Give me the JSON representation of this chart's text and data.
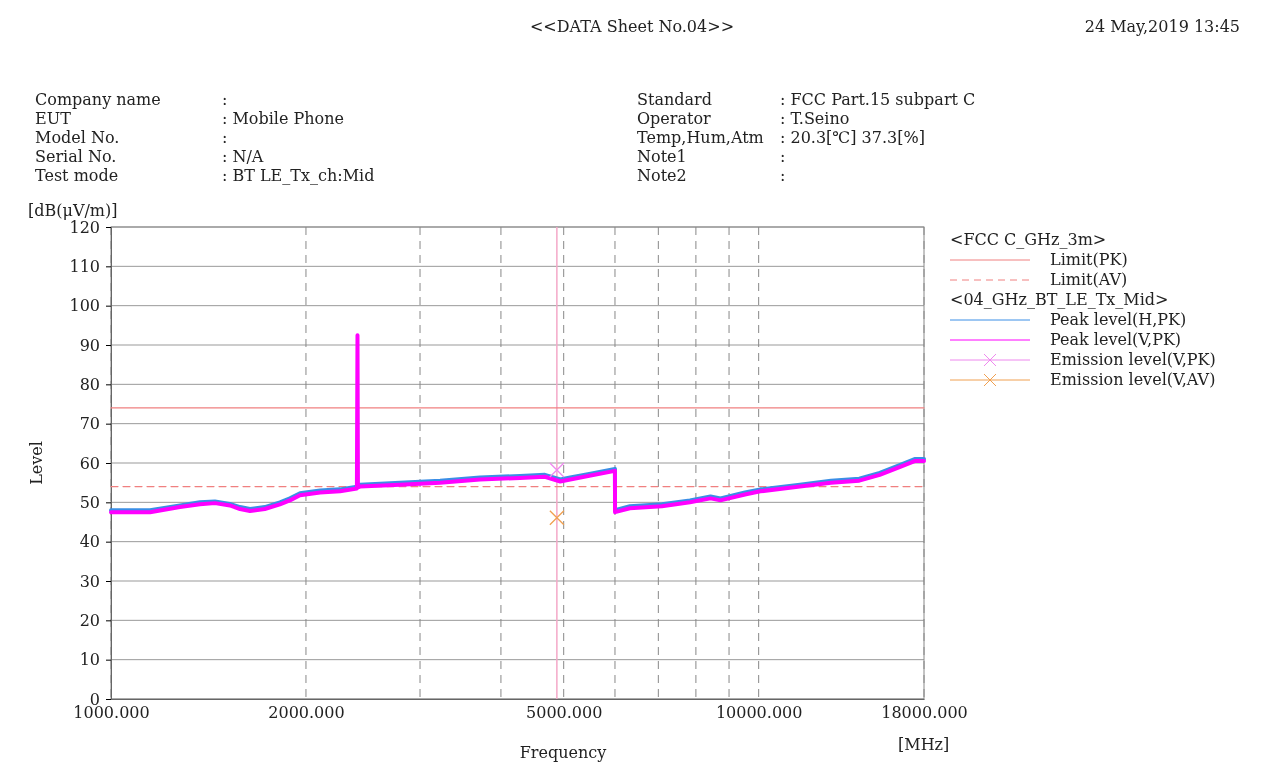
{
  "chart_data": {
    "type": "line",
    "title": "<<DATA Sheet No.04>>",
    "xlabel": "Frequency",
    "ylabel": "Level",
    "legend_title": "<FCC C_GHz_3m>",
    "log": "x",
    "grid": true,
    "legend": "right",
    "xlim": [
      1000,
      18000
    ],
    "ylim": [
      0,
      120
    ],
    "xticks": [
      {
        "value": 1000,
        "label": "1000.000"
      },
      {
        "value": 2000,
        "label": "2000.000"
      },
      {
        "value": 3000,
        "label": null
      },
      {
        "value": 4000,
        "label": null
      },
      {
        "value": 5000,
        "label": "5000.000"
      },
      {
        "value": 6000,
        "label": null
      },
      {
        "value": 7000,
        "label": null
      },
      {
        "value": 8000,
        "label": null
      },
      {
        "value": 9000,
        "label": null
      },
      {
        "value": 10000,
        "label": "10000.000"
      },
      {
        "value": 18000,
        "label": "18000.000"
      }
    ],
    "yticks": [
      0,
      10,
      20,
      30,
      40,
      50,
      60,
      70,
      80,
      90,
      100,
      110,
      120
    ],
    "ref_lines": [
      {
        "axis": "x",
        "value": 4880,
        "color": "#f4a8c8"
      }
    ],
    "annotations": [
      "24 May,2019 13:45",
      "Company name",
      ":",
      "EUT",
      ": Mobile Phone",
      "Model No.",
      ":",
      "Serial No.",
      ": N/A",
      "Test mode",
      ": BT LE_Tx_ch:Mid",
      "Standard",
      ": FCC Part.15 subpart C",
      "Operator",
      ": T.Seino",
      "Temp,Hum,Atm",
      ": 20.3[℃] 37.3[%]",
      "Note1",
      ":",
      "Note2",
      ":",
      "[dB(μV/m)]",
      "[MHz]",
      "<04_GHz_BT_LE_Tx_Mid>"
    ],
    "series": [
      {
        "name": "Limit(PK)",
        "color": "#f08080",
        "line_style": "solid",
        "x": [
          1000,
          18000
        ],
        "values": [
          74,
          74
        ]
      },
      {
        "name": "Limit(AV)",
        "color": "#f08080",
        "line_style": "dashed",
        "x": [
          1000,
          18000
        ],
        "values": [
          54,
          54
        ]
      },
      {
        "name": "Peak level(H,PK)",
        "color": "#3a8ee6",
        "line_style": "solid",
        "x": [
          1000,
          1149,
          1278,
          1372,
          1447,
          1526,
          1582,
          1639,
          1728,
          1823,
          1889,
          1958,
          2103,
          2258,
          2397,
          2424,
          2795,
          3222,
          3713,
          4280,
          4677,
          4940,
          5118,
          5502,
          5999,
          6001,
          6327,
          7090,
          7833,
          8427,
          8730,
          9525,
          10060,
          11580,
          12930,
          14300,
          15380,
          16540,
          17410,
          18000
        ],
        "values": [
          48,
          48,
          49.2,
          50,
          50.2,
          49.6,
          48.8,
          48.3,
          48.8,
          50,
          51,
          52.3,
          53,
          53.3,
          54,
          54.5,
          55,
          55.5,
          56.3,
          56.7,
          57,
          55.8,
          56.3,
          57.3,
          58.5,
          48,
          49,
          49.5,
          50.5,
          51.5,
          51,
          52.5,
          53.3,
          54.5,
          55.5,
          56,
          57.5,
          59.5,
          61,
          61
        ]
      },
      {
        "name": "Peak level(V,PK)",
        "color": "#ff00ff",
        "line_style": "solid",
        "x": [
          1000,
          1149,
          1278,
          1372,
          1447,
          1526,
          1582,
          1639,
          1728,
          1823,
          1889,
          1958,
          2103,
          2258,
          2397,
          2402,
          2406,
          2424,
          2795,
          3222,
          3713,
          4280,
          4677,
          4940,
          5118,
          5502,
          5999,
          6001,
          6327,
          7090,
          7833,
          8427,
          8730,
          9525,
          10060,
          11580,
          12930,
          14300,
          15380,
          16540,
          17410,
          18000
        ],
        "values": [
          47.5,
          47.5,
          48.8,
          49.5,
          49.8,
          49.2,
          48.3,
          47.8,
          48.3,
          49.5,
          50.5,
          51.8,
          52.5,
          52.8,
          53.5,
          92.5,
          53.8,
          54,
          54.5,
          55,
          55.8,
          56.2,
          56.5,
          55.3,
          55.8,
          56.8,
          58,
          47.5,
          48.5,
          49,
          50,
          51,
          50.5,
          52,
          52.8,
          54,
          55,
          55.5,
          57,
          59,
          60.5,
          60.5
        ]
      },
      {
        "name": "Emission level(V,PK)",
        "type": "scatter",
        "marker": "cross",
        "color": "#ee88ee",
        "x": [
          4880
        ],
        "values": [
          58.2
        ]
      },
      {
        "name": "Emission level(V,AV)",
        "type": "scatter",
        "marker": "cross",
        "color": "#f0a050",
        "x": [
          4880
        ],
        "values": [
          46.1
        ]
      }
    ]
  }
}
